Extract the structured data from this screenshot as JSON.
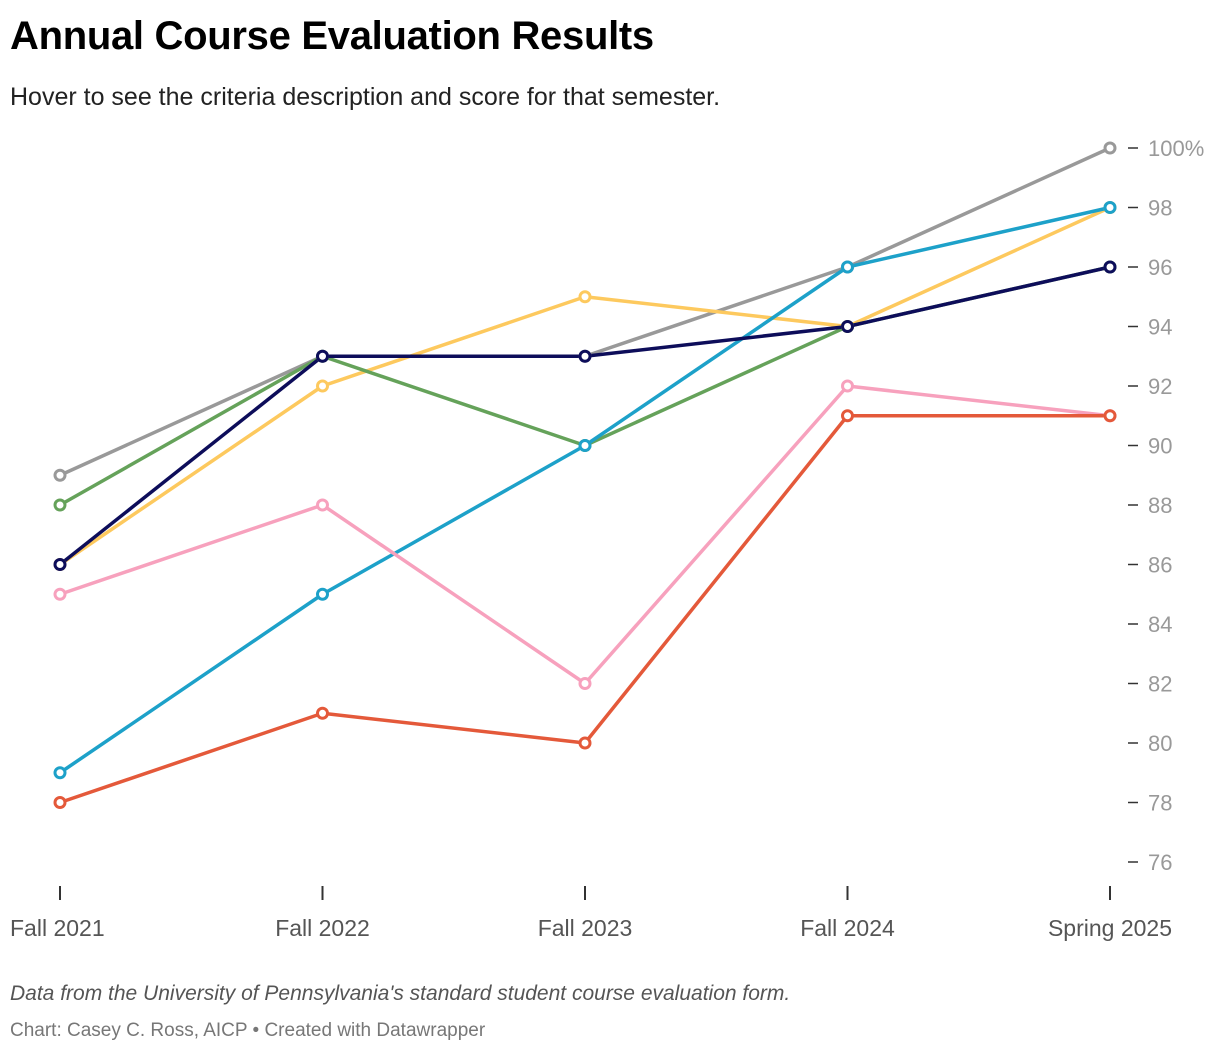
{
  "header": {
    "title": "Annual Course Evaluation Results",
    "subtitle": "Hover to see the criteria description and score for that semester."
  },
  "footer": {
    "notes": "Data from the University of Pennsylvania's standard student course evaluation form.",
    "credit_author": "Chart: Casey C. Ross, AICP",
    "credit_separator": "•",
    "credit_tool": "Created with Datawrapper"
  },
  "chart_data": {
    "type": "line",
    "title": "Annual Course Evaluation Results",
    "xlabel": "",
    "ylabel": "",
    "categories": [
      "Fall 2021",
      "Fall 2022",
      "Fall 2023",
      "Fall 2024",
      "Spring 2025"
    ],
    "ylim": [
      75,
      100
    ],
    "yticks": [
      76,
      78,
      80,
      82,
      84,
      86,
      88,
      90,
      92,
      94,
      96,
      98,
      100
    ],
    "ytick_labels": [
      "76",
      "78",
      "80",
      "82",
      "84",
      "86",
      "88",
      "90",
      "92",
      "94",
      "96",
      "98",
      "100%"
    ],
    "grid": false,
    "yaxis_position": "right",
    "series": [
      {
        "name": "gray",
        "color": "#999999",
        "values": [
          89,
          93,
          93,
          96,
          100
        ]
      },
      {
        "name": "yellow",
        "color": "#fdc95e",
        "values": [
          86,
          92,
          95,
          94,
          98
        ]
      },
      {
        "name": "green",
        "color": "#65a25a",
        "values": [
          88,
          93,
          90,
          94,
          96
        ]
      },
      {
        "name": "blue",
        "color": "#1da1c9",
        "values": [
          79,
          85,
          90,
          96,
          98
        ]
      },
      {
        "name": "pink",
        "color": "#f7a1bd",
        "values": [
          85,
          88,
          82,
          92,
          91
        ]
      },
      {
        "name": "orange",
        "color": "#e4593a",
        "values": [
          78,
          81,
          80,
          91,
          91
        ]
      },
      {
        "name": "navy",
        "color": "#0d0d5a",
        "values": [
          86,
          93,
          93,
          94,
          96
        ]
      }
    ]
  }
}
